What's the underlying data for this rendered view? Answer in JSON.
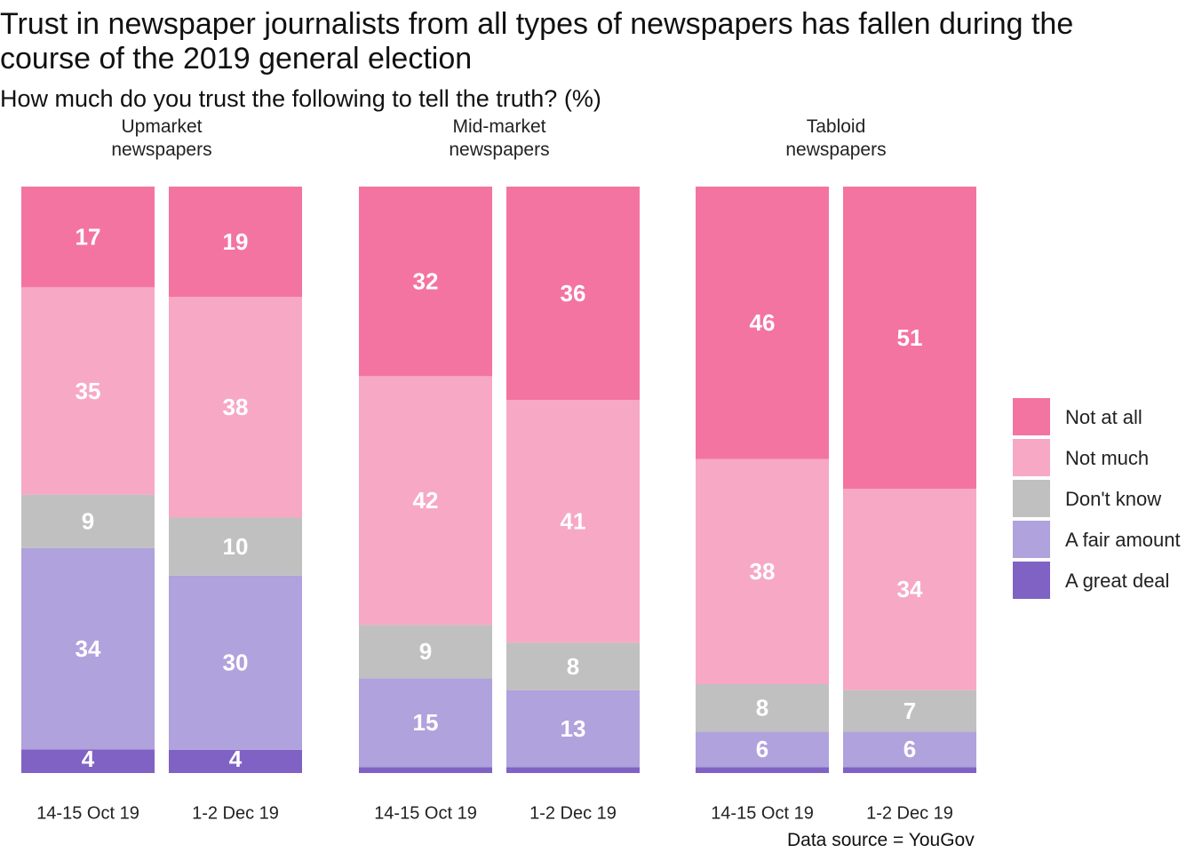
{
  "title": "Trust in newspaper journalists from all types of newspapers has fallen during the course of the 2019 general election",
  "subtitle": "How much do you trust the following to tell the truth? (%)",
  "source": "Data source = YouGov",
  "chart_data": [
    {
      "type": "stacked_bar",
      "title": "Upmarket newspapers",
      "categories": [
        "14-15 Oct 19",
        "1-2 Dec 19"
      ],
      "series": [
        {
          "name": "A great deal",
          "color": "#7f62c4",
          "values": [
            4,
            4
          ]
        },
        {
          "name": "A fair amount",
          "color": "#b0a2dc",
          "values": [
            34,
            30
          ]
        },
        {
          "name": "Don't know",
          "color": "#c0c0c0",
          "values": [
            9,
            10
          ]
        },
        {
          "name": "Not much",
          "color": "#f7a8c5",
          "values": [
            35,
            38
          ]
        },
        {
          "name": "Not at all",
          "color": "#f374a0",
          "values": [
            17,
            19
          ]
        }
      ]
    },
    {
      "type": "stacked_bar",
      "title": "Mid-market newspapers",
      "categories": [
        "14-15 Oct 19",
        "1-2 Dec 19"
      ],
      "series": [
        {
          "name": "A great deal",
          "color": "#7f62c4",
          "values": [
            1,
            1
          ]
        },
        {
          "name": "A fair amount",
          "color": "#b0a2dc",
          "values": [
            15,
            13
          ]
        },
        {
          "name": "Don't know",
          "color": "#c0c0c0",
          "values": [
            9,
            8
          ]
        },
        {
          "name": "Not much",
          "color": "#f7a8c5",
          "values": [
            42,
            41
          ]
        },
        {
          "name": "Not at all",
          "color": "#f374a0",
          "values": [
            32,
            36
          ]
        }
      ]
    },
    {
      "type": "stacked_bar",
      "title": "Tabloid newspapers",
      "categories": [
        "14-15 Oct 19",
        "1-2 Dec 19"
      ],
      "series": [
        {
          "name": "A great deal",
          "color": "#7f62c4",
          "values": [
            1,
            1
          ]
        },
        {
          "name": "A fair amount",
          "color": "#b0a2dc",
          "values": [
            6,
            6
          ]
        },
        {
          "name": "Don't know",
          "color": "#c0c0c0",
          "values": [
            8,
            7
          ]
        },
        {
          "name": "Not much",
          "color": "#f7a8c5",
          "values": [
            38,
            34
          ]
        },
        {
          "name": "Not at all",
          "color": "#f374a0",
          "values": [
            46,
            51
          ]
        }
      ]
    }
  ]
}
